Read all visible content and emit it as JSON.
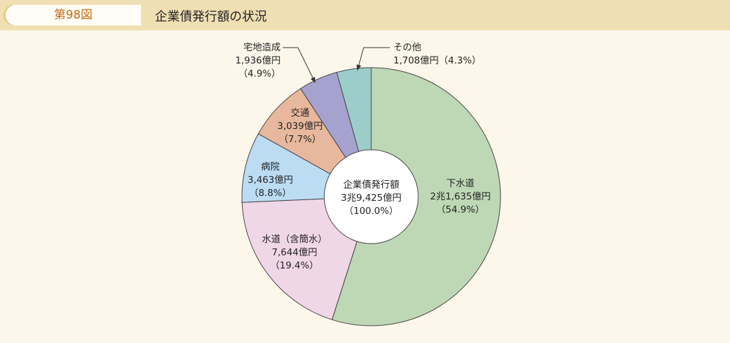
{
  "header": {
    "figure_number": "第98図",
    "title": "企業債発行額の状況"
  },
  "chart_data": {
    "type": "pie",
    "title": "企業債発行額の状況",
    "center_label": [
      "企業債発行額",
      "3兆9,425億円",
      "（100.0%）"
    ],
    "slices": [
      {
        "name": "下水道",
        "value_text": "2兆1,635億円",
        "percent_text": "（54.9%）",
        "percent": 54.9,
        "color": "#bed8b5"
      },
      {
        "name": "水道（含簡水）",
        "value_text": "7,644億円",
        "percent_text": "（19.4%）",
        "percent": 19.4,
        "color": "#f0d7e7"
      },
      {
        "name": "病院",
        "value_text": "3,463億円",
        "percent_text": "（8.8%）",
        "percent": 8.8,
        "color": "#bcdcf4"
      },
      {
        "name": "交通",
        "value_text": "3,039億円",
        "percent_text": "（7.7%）",
        "percent": 7.7,
        "color": "#e8b89e"
      },
      {
        "name": "宅地造成",
        "value_text": "1,936億円",
        "percent_text": "（4.9%）",
        "percent": 4.9,
        "color": "#a6a2d0"
      },
      {
        "name": "その他",
        "value_text": "1,708億円",
        "percent_text": "（4.3%）",
        "percent": 4.3,
        "color": "#9ccdc9"
      }
    ]
  }
}
